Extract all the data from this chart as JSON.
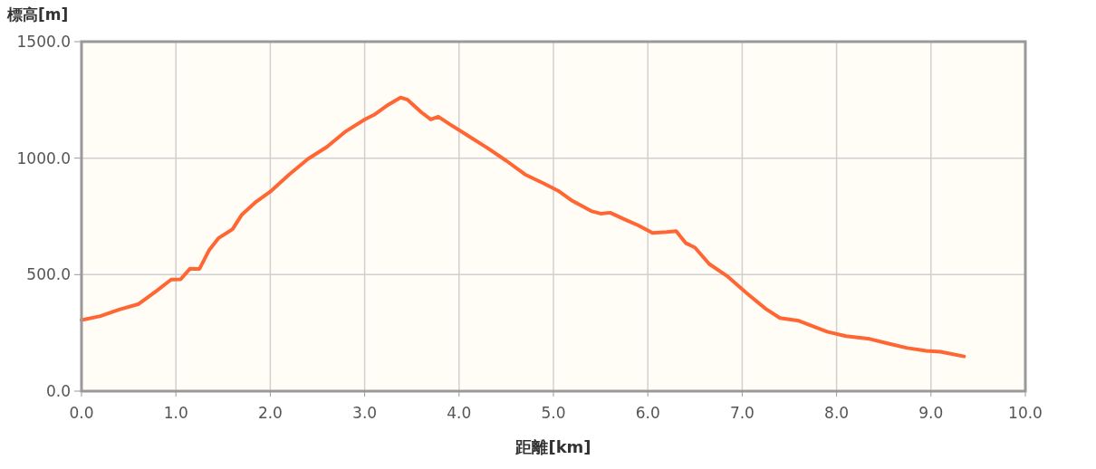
{
  "chart_data": {
    "type": "line",
    "xlabel": "距離[km]",
    "ylabel": "標高[m]",
    "xlim": [
      0,
      10
    ],
    "ylim": [
      0,
      1500
    ],
    "xticks": [
      {
        "value": 0,
        "label": "0.0"
      },
      {
        "value": 1,
        "label": "1.0"
      },
      {
        "value": 2,
        "label": "2.0"
      },
      {
        "value": 3,
        "label": "3.0"
      },
      {
        "value": 4,
        "label": "4.0"
      },
      {
        "value": 5,
        "label": "5.0"
      },
      {
        "value": 6,
        "label": "6.0"
      },
      {
        "value": 7,
        "label": "7.0"
      },
      {
        "value": 8,
        "label": "8.0"
      },
      {
        "value": 9,
        "label": "9.0"
      },
      {
        "value": 10,
        "label": "10.0"
      }
    ],
    "yticks": [
      {
        "value": 0,
        "label": "0.0"
      },
      {
        "value": 500,
        "label": "500.0"
      },
      {
        "value": 1000,
        "label": "1000.0"
      },
      {
        "value": 1500,
        "label": "1500.0"
      }
    ],
    "grid": true,
    "marker": "none",
    "line_style": "solid",
    "x": [
      0,
      0.2,
      0.4,
      0.6,
      0.8,
      0.95,
      1.05,
      1.15,
      1.25,
      1.35,
      1.45,
      1.6,
      1.7,
      1.85,
      2.0,
      2.2,
      2.4,
      2.6,
      2.8,
      3.0,
      3.1,
      3.25,
      3.38,
      3.45,
      3.6,
      3.7,
      3.78,
      3.9,
      4.1,
      4.3,
      4.5,
      4.7,
      4.9,
      5.05,
      5.2,
      5.4,
      5.5,
      5.6,
      5.75,
      5.9,
      6.05,
      6.2,
      6.3,
      6.4,
      6.5,
      6.65,
      6.85,
      7.05,
      7.25,
      7.4,
      7.6,
      7.8,
      7.9,
      8.1,
      8.35,
      8.55,
      8.75,
      8.95,
      9.1,
      9.35
    ],
    "series": [
      {
        "color": "#ff6633",
        "values": [
          305,
          322,
          350,
          373,
          432,
          479,
          480,
          526,
          525,
          604,
          656,
          695,
          758,
          813,
          856,
          930,
          997,
          1048,
          1115,
          1166,
          1186,
          1229,
          1260,
          1252,
          1197,
          1166,
          1178,
          1146,
          1095,
          1044,
          989,
          930,
          891,
          860,
          817,
          773,
          762,
          766,
          738,
          711,
          679,
          683,
          687,
          636,
          616,
          546,
          491,
          420,
          353,
          314,
          302,
          271,
          255,
          236,
          224,
          204,
          185,
          173,
          169,
          149
        ]
      }
    ]
  }
}
